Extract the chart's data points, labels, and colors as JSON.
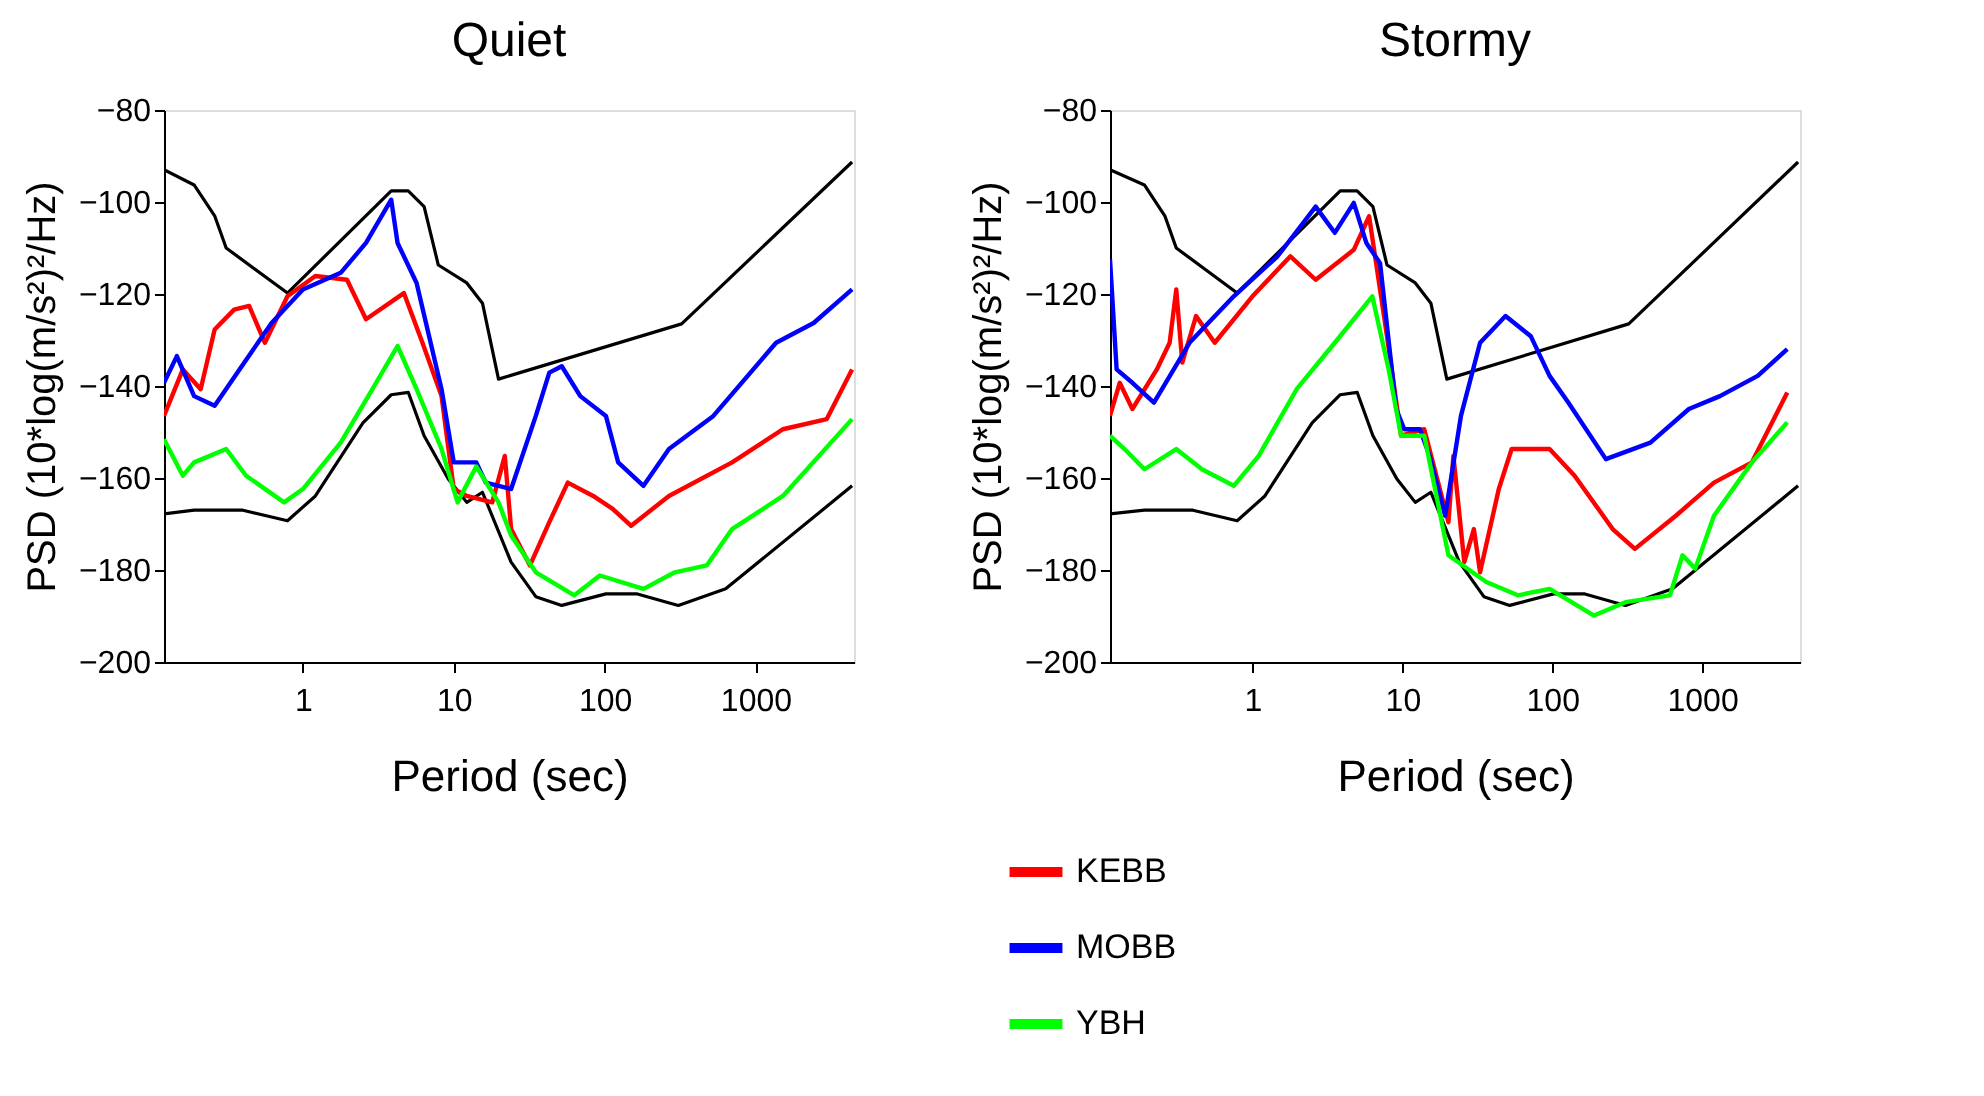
{
  "chart_data": [
    {
      "type": "line",
      "title": "Quiet",
      "xlabel": "Period (sec)",
      "ylabel": "PSD (10*log(m/s²)²/Hz)",
      "log": "x",
      "grid": false,
      "legend": "bottom",
      "xlim": [
        0.12,
        4500
      ],
      "ylim": [
        -200,
        -80
      ],
      "xticks": [
        1,
        10,
        100,
        1000
      ],
      "yticks": [
        -80,
        -100,
        -120,
        -140,
        -160,
        -180,
        -200
      ],
      "series": [
        {
          "color": "#000000",
          "x": [
            0.12,
            0.19,
            0.26,
            0.31,
            0.79,
            3.85,
            4.99,
            6.36,
            7.9,
            12.2,
            15.5,
            19.8,
            324,
            4370
          ],
          "values": [
            -93,
            -96.3,
            -103,
            -110,
            -119.8,
            -97.6,
            -97.6,
            -101,
            -113.7,
            -117.6,
            -122,
            -138.5,
            -126.5,
            -91.3
          ]
        },
        {
          "color": "#000000",
          "x": [
            0.12,
            0.19,
            0.4,
            0.79,
            1.21,
            2.5,
            3.85,
            5,
            6.36,
            9.2,
            12.2,
            15.5,
            24,
            35,
            52,
            102,
            165,
            308,
            635,
            4370
          ],
          "values": [
            -167.8,
            -167,
            -167,
            -169.3,
            -163.9,
            -148,
            -141.9,
            -141.4,
            -150.8,
            -160.2,
            -165.3,
            -163.1,
            -178.3,
            -185.8,
            -187.7,
            -185.2,
            -185.2,
            -187.7,
            -184.1,
            -161.7
          ]
        },
        {
          "name": "KEBB",
          "color": "#ff0000",
          "x": [
            0.12,
            0.16,
            0.21,
            0.26,
            0.35,
            0.44,
            0.56,
            0.79,
            1.21,
            1.96,
            2.62,
            4.67,
            6.2,
            8.3,
            10,
            12.2,
            18,
            21.8,
            24,
            32,
            43,
            57,
            84,
            113,
            150,
            267,
            700,
            1520,
            2970,
            4370
          ],
          "values": [
            -146.5,
            -136.4,
            -140.7,
            -127.7,
            -123.4,
            -122.6,
            -130.6,
            -120.5,
            -116.1,
            -116.9,
            -125.5,
            -119.8,
            -130.6,
            -142.2,
            -162.4,
            -163.9,
            -165.3,
            -155.2,
            -171.1,
            -179,
            -169.6,
            -161,
            -163.9,
            -166.7,
            -170.4,
            -163.9,
            -156.6,
            -149.4,
            -147.2,
            -136.4
          ]
        },
        {
          "name": "MOBB",
          "color": "#0000ff",
          "x": [
            0.12,
            0.146,
            0.19,
            0.26,
            0.38,
            0.62,
            1.0,
            1.78,
            2.62,
            3.85,
            4.24,
            5.67,
            8.3,
            10,
            14.1,
            16.3,
            24,
            35,
            43,
            52,
            69,
            102,
            123,
            181,
            267,
            526,
            1370,
            2430,
            4370
          ],
          "values": [
            -139.3,
            -133.5,
            -142.2,
            -144.3,
            -136.4,
            -126.3,
            -119,
            -115.4,
            -108.9,
            -99.5,
            -108.9,
            -117.6,
            -140.7,
            -156.6,
            -156.6,
            -161,
            -162.4,
            -146.5,
            -137.1,
            -135.7,
            -142.2,
            -146.5,
            -156.6,
            -161.7,
            -153.7,
            -146.5,
            -130.6,
            -126.3,
            -119
          ]
        },
        {
          "name": "YBH",
          "color": "#00ff00",
          "x": [
            0.12,
            0.16,
            0.19,
            0.31,
            0.42,
            0.75,
            1,
            1.78,
            2.89,
            4.24,
            5.67,
            8.3,
            10.6,
            14.1,
            19.8,
            24,
            35,
            63,
            93,
            181,
            292,
            475,
            700,
            1520,
            4370
          ],
          "values": [
            -151.6,
            -159.5,
            -156.6,
            -153.7,
            -159.5,
            -165.3,
            -162.4,
            -152.3,
            -140.7,
            -131.3,
            -140.7,
            -153.7,
            -165.3,
            -157.5,
            -165.3,
            -172.5,
            -180.5,
            -185.5,
            -181.2,
            -184.1,
            -180.5,
            -179,
            -171.1,
            -163.9,
            -147.2
          ]
        }
      ]
    },
    {
      "type": "line",
      "title": "Stormy",
      "xlabel": "Period (sec)",
      "ylabel": "PSD (10*log(m/s²)²/Hz)",
      "log": "x",
      "grid": false,
      "legend": "bottom",
      "xlim": [
        0.112,
        4500
      ],
      "ylim": [
        -200,
        -80
      ],
      "xticks": [
        1,
        10,
        100,
        1000
      ],
      "yticks": [
        -80,
        -100,
        -120,
        -140,
        -160,
        -180,
        -200
      ],
      "series": [
        {
          "color": "#000000",
          "x": [
            0.112,
            0.19,
            0.26,
            0.31,
            0.79,
            3.85,
            4.99,
            6.36,
            7.9,
            12.2,
            15.5,
            19.8,
            324,
            4370
          ],
          "values": [
            -93,
            -96.3,
            -103,
            -110,
            -119.8,
            -97.6,
            -97.6,
            -101,
            -113.7,
            -117.6,
            -122,
            -138.5,
            -126.5,
            -91.3
          ]
        },
        {
          "color": "#000000",
          "x": [
            0.112,
            0.19,
            0.4,
            0.79,
            1.21,
            2.5,
            3.85,
            5,
            6.36,
            9.2,
            12.2,
            15.5,
            24,
            35,
            52,
            102,
            165,
            308,
            635,
            4370
          ],
          "values": [
            -167.8,
            -167,
            -167,
            -169.3,
            -163.9,
            -148,
            -141.9,
            -141.4,
            -150.8,
            -160.2,
            -165.3,
            -163.1,
            -178.3,
            -185.8,
            -187.7,
            -185.2,
            -185.2,
            -187.7,
            -184.1,
            -161.7
          ]
        },
        {
          "name": "KEBB",
          "color": "#ff0000",
          "x": [
            0.112,
            0.13,
            0.158,
            0.23,
            0.28,
            0.31,
            0.34,
            0.42,
            0.56,
            1,
            1.79,
            2.64,
            4.74,
            6.0,
            7.9,
            9.8,
            14,
            20.3,
            21.9,
            25.9,
            30,
            33,
            44,
            53.6,
            96,
            141,
            253,
            356,
            668,
            1200,
            2150,
            3700
          ],
          "values": [
            -146.5,
            -139.3,
            -145,
            -136.4,
            -130.6,
            -119,
            -134.9,
            -124.8,
            -130.6,
            -120.5,
            -111.8,
            -116.9,
            -110.4,
            -103.1,
            -129.2,
            -150.8,
            -149.4,
            -169.6,
            -155.2,
            -178.3,
            -171.1,
            -180.5,
            -162.4,
            -153.7,
            -153.7,
            -159.5,
            -171.1,
            -175.4,
            -168.2,
            -161,
            -156.6,
            -141.4
          ]
        },
        {
          "name": "MOBB",
          "color": "#0000ff",
          "x": [
            0.112,
            0.124,
            0.158,
            0.22,
            0.38,
            0.75,
            1.47,
            2.64,
            3.54,
            4.74,
            5.75,
            7.1,
            9.1,
            10.3,
            13.1,
            15.2,
            19.3,
            24.6,
            33,
            48.8,
            72,
            96,
            128,
            228,
            452,
            816,
            1315,
            2350,
            3700
          ],
          "values": [
            -112.5,
            -136.4,
            -139.3,
            -143.6,
            -130.6,
            -120.5,
            -111.8,
            -101,
            -106.7,
            -100.2,
            -108.9,
            -113.3,
            -145,
            -149.4,
            -149.4,
            -155.2,
            -168.2,
            -146.5,
            -130.6,
            -124.8,
            -129.2,
            -137.8,
            -143.6,
            -155.9,
            -152.3,
            -145,
            -142.2,
            -137.8,
            -132
          ]
        },
        {
          "name": "YBH",
          "color": "#00ff00",
          "x": [
            0.112,
            0.14,
            0.19,
            0.31,
            0.46,
            0.75,
            1.1,
            1.97,
            3.54,
            6.3,
            8.1,
            9.8,
            14,
            20.3,
            36.3,
            59,
            96,
            190,
            308,
            610,
            740,
            900,
            1200,
            2150,
            3700
          ],
          "values": [
            -150.8,
            -153.7,
            -158.1,
            -153.7,
            -158.1,
            -161.7,
            -155.2,
            -140.7,
            -130.6,
            -120.5,
            -136.4,
            -150.8,
            -150.8,
            -176.8,
            -182.6,
            -185.5,
            -184.1,
            -189.9,
            -187,
            -185.5,
            -176.8,
            -179.7,
            -168.2,
            -156.6,
            -147.9
          ]
        }
      ]
    }
  ]
}
